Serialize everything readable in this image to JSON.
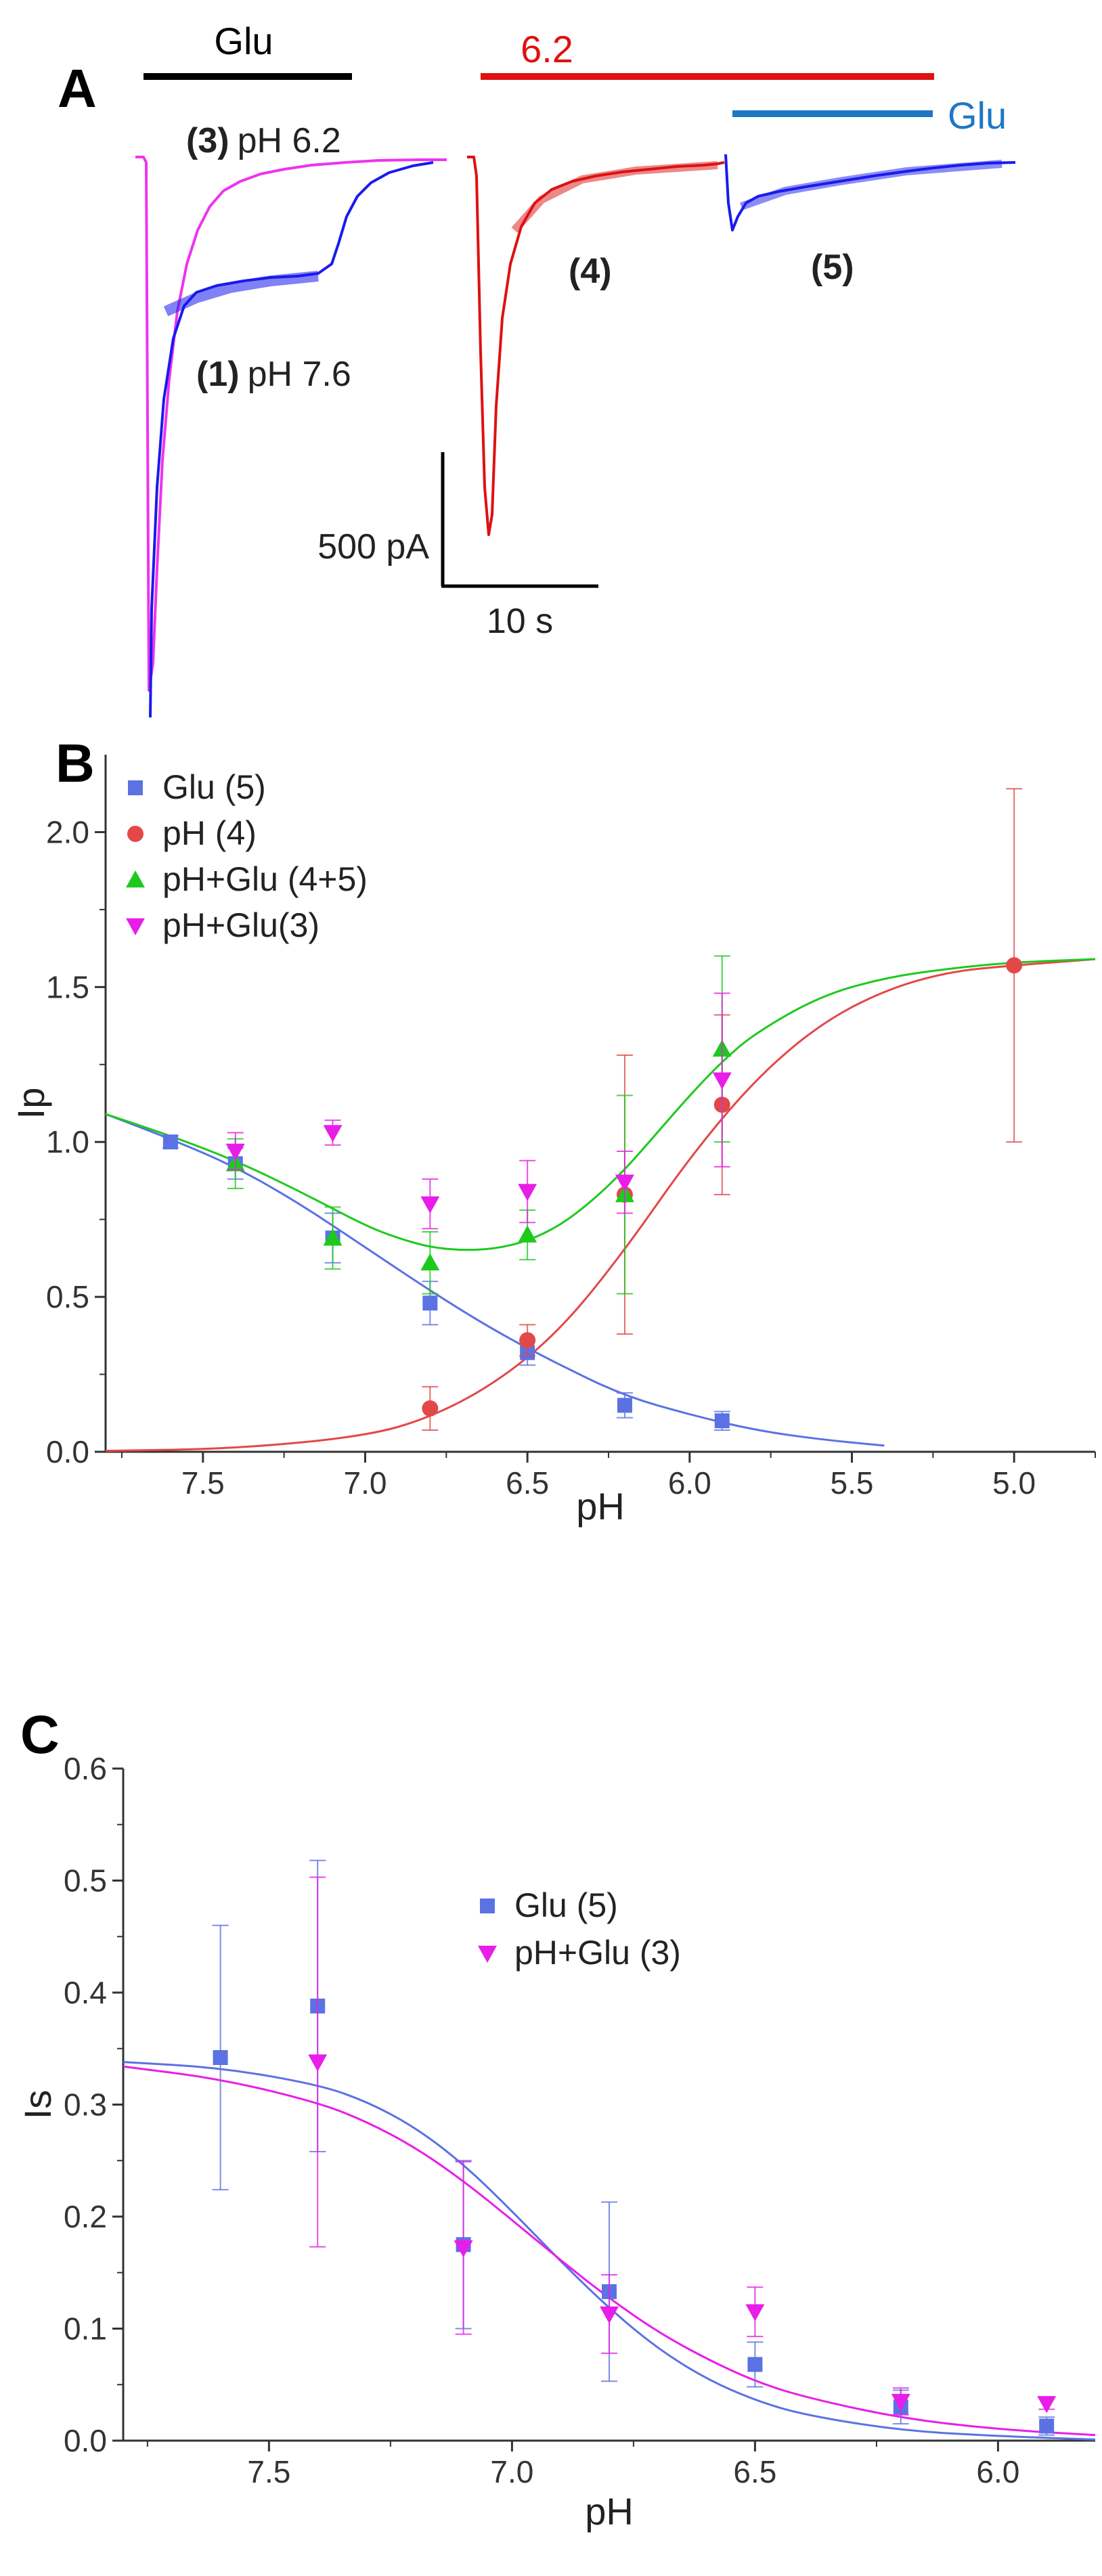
{
  "colors": {
    "glu": "#5b72e3",
    "ph": "#e34848",
    "ph_glu_45": "#1ec91e",
    "ph_glu_3": "#e81ee8",
    "trace1": "#1a1aee",
    "trace3": "#ee33ee",
    "trace4": "#dd1111",
    "glu_bar": "#1f77c4",
    "ph_bar": "#e01010",
    "black": "#000000"
  },
  "panel_a": {
    "letter": "A",
    "glu_bar_label": "Glu",
    "ph_bar_label": "6.2",
    "glu_bar2_label": "Glu",
    "trace3_num": "(3)",
    "trace3_text": "pH 6.2",
    "trace1_num": "(1)",
    "trace1_text": "pH 7.6",
    "trace4_label": "(4)",
    "trace5_label": "(5)",
    "scale_current": "500 pA",
    "scale_time": "10 s"
  },
  "chart_data": [
    {
      "panel": "B",
      "type": "scatter",
      "xlabel": "pH",
      "ylabel": "Ip",
      "xlim": [
        7.8,
        4.75
      ],
      "ylim": [
        0,
        2.25
      ],
      "xticks": [
        7.5,
        7.0,
        6.5,
        6.0,
        5.5,
        5.0
      ],
      "xtick_labels": [
        "7.5",
        "7.0",
        "6.5",
        "6.0",
        "5.5",
        "5.0"
      ],
      "yticks": [
        0,
        0.5,
        1.0,
        1.5,
        2.0
      ],
      "ytick_labels": [
        "0.0",
        "0.5",
        "1.0",
        "1.5",
        "2.0"
      ],
      "legend_position": "top-left",
      "series": [
        {
          "name": "Glu (5)",
          "marker": "square",
          "color": "#5b72e3",
          "x": [
            7.6,
            7.4,
            7.1,
            6.8,
            6.5,
            6.2,
            5.9
          ],
          "y": [
            1.0,
            0.93,
            0.69,
            0.48,
            0.32,
            0.15,
            0.1
          ],
          "err": [
            0.02,
            0.05,
            0.08,
            0.07,
            0.04,
            0.04,
            0.03
          ]
        },
        {
          "name": "pH (4)",
          "marker": "circle",
          "color": "#e34848",
          "x": [
            6.8,
            6.5,
            6.2,
            5.9,
            5.0
          ],
          "y": [
            0.14,
            0.36,
            0.83,
            1.12,
            1.57
          ],
          "err": [
            0.07,
            0.05,
            0.45,
            0.29,
            0.57
          ]
        },
        {
          "name": "pH+Glu (4+5)",
          "marker": "triangle-up",
          "color": "#1ec91e",
          "x": [
            7.4,
            7.1,
            6.8,
            6.5,
            6.2,
            5.9
          ],
          "y": [
            0.93,
            0.69,
            0.61,
            0.7,
            0.83,
            1.3
          ],
          "err": [
            0.08,
            0.1,
            0.1,
            0.08,
            0.32,
            0.3
          ]
        },
        {
          "name": "pH+Glu(3)",
          "marker": "triangle-down",
          "color": "#e81ee8",
          "x": [
            7.4,
            7.1,
            6.8,
            6.5,
            6.2,
            5.9
          ],
          "y": [
            0.97,
            1.03,
            0.8,
            0.84,
            0.87,
            1.2
          ],
          "err": [
            0.06,
            0.04,
            0.08,
            0.1,
            0.1,
            0.28
          ]
        }
      ],
      "fits": [
        {
          "name": "Glu fit",
          "color": "#5b72e3",
          "x": [
            7.8,
            7.6,
            7.4,
            7.2,
            7.0,
            6.8,
            6.6,
            6.4,
            6.2,
            6.0,
            5.8,
            5.6,
            5.4
          ],
          "y": [
            1.09,
            1.01,
            0.92,
            0.8,
            0.66,
            0.52,
            0.39,
            0.28,
            0.18,
            0.12,
            0.07,
            0.04,
            0.02
          ]
        },
        {
          "name": "pH fit",
          "color": "#e34848",
          "x": [
            7.8,
            7.4,
            7.0,
            6.8,
            6.6,
            6.4,
            6.2,
            6.0,
            5.8,
            5.6,
            5.4,
            5.2,
            5.0,
            4.75
          ],
          "y": [
            0.003,
            0.01,
            0.05,
            0.11,
            0.22,
            0.39,
            0.65,
            0.95,
            1.2,
            1.38,
            1.49,
            1.55,
            1.57,
            1.59
          ]
        },
        {
          "name": "pH+Glu fit",
          "color": "#1ec91e",
          "x": [
            7.8,
            7.6,
            7.4,
            7.2,
            7.0,
            6.9,
            6.8,
            6.7,
            6.6,
            6.5,
            6.4,
            6.3,
            6.2,
            6.1,
            6.0,
            5.9,
            5.8,
            5.6,
            5.4,
            5.2,
            5.0,
            4.75
          ],
          "y": [
            1.09,
            1.02,
            0.94,
            0.84,
            0.73,
            0.69,
            0.66,
            0.65,
            0.655,
            0.68,
            0.73,
            0.81,
            0.91,
            1.03,
            1.15,
            1.26,
            1.35,
            1.47,
            1.53,
            1.56,
            1.58,
            1.59
          ]
        }
      ]
    },
    {
      "panel": "C",
      "type": "scatter",
      "xlabel": "pH",
      "ylabel": "Is",
      "xlim": [
        7.8,
        5.8
      ],
      "ylim": [
        0,
        0.6
      ],
      "xticks": [
        7.5,
        7.0,
        6.5,
        6.0
      ],
      "xtick_labels": [
        "7.5",
        "7.0",
        "6.5",
        "6.0"
      ],
      "yticks": [
        0,
        0.1,
        0.2,
        0.3,
        0.4,
        0.5,
        0.6
      ],
      "ytick_labels": [
        "0.0",
        "0.1",
        "0.2",
        "0.3",
        "0.4",
        "0.5",
        "0.6"
      ],
      "legend_position": "top-right",
      "series": [
        {
          "name": "Glu (5)",
          "marker": "square",
          "color": "#5b72e3",
          "x": [
            7.6,
            7.4,
            7.1,
            6.8,
            6.5,
            6.2,
            5.9
          ],
          "y": [
            0.342,
            0.388,
            0.175,
            0.133,
            0.068,
            0.03,
            0.013
          ],
          "err": [
            0.118,
            0.13,
            0.075,
            0.08,
            0.02,
            0.015,
            0.008
          ]
        },
        {
          "name": "pH+Glu (3)",
          "marker": "triangle-down",
          "color": "#e81ee8",
          "x": [
            7.4,
            7.1,
            6.8,
            6.5,
            6.2,
            5.9
          ],
          "y": [
            0.338,
            0.172,
            0.113,
            0.115,
            0.035,
            0.033
          ],
          "err": [
            0.165,
            0.077,
            0.035,
            0.022,
            0.012,
            0.005
          ]
        }
      ],
      "fits": [
        {
          "name": "Glu fit",
          "color": "#5b72e3",
          "x": [
            7.8,
            7.6,
            7.4,
            7.3,
            7.2,
            7.1,
            7.0,
            6.9,
            6.8,
            6.7,
            6.6,
            6.5,
            6.4,
            6.2,
            6.0,
            5.8
          ],
          "y": [
            0.338,
            0.333,
            0.318,
            0.303,
            0.28,
            0.247,
            0.205,
            0.16,
            0.118,
            0.082,
            0.055,
            0.036,
            0.023,
            0.009,
            0.004,
            0.001
          ]
        },
        {
          "name": "pH+Glu fit",
          "color": "#e81ee8",
          "x": [
            7.8,
            7.6,
            7.4,
            7.3,
            7.2,
            7.1,
            7.0,
            6.9,
            6.8,
            6.7,
            6.6,
            6.5,
            6.4,
            6.2,
            6.0,
            5.8
          ],
          "y": [
            0.334,
            0.323,
            0.302,
            0.285,
            0.262,
            0.232,
            0.197,
            0.161,
            0.127,
            0.097,
            0.073,
            0.053,
            0.039,
            0.02,
            0.01,
            0.005
          ]
        }
      ]
    }
  ]
}
